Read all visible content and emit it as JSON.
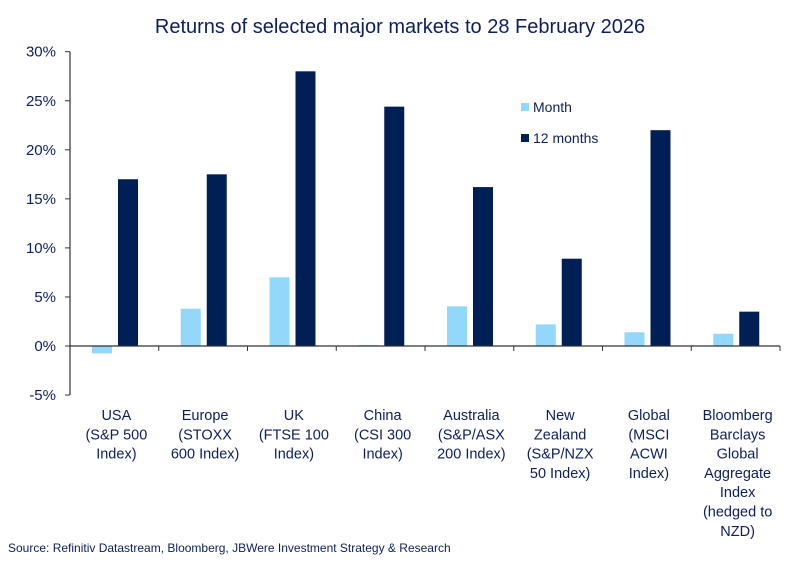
{
  "chart_data": {
    "type": "bar",
    "title": "Returns of selected major markets to 28 February 2026",
    "categories": [
      [
        "USA",
        "(S&P 500",
        "Index)"
      ],
      [
        "Europe",
        "(STOXX",
        "600 Index)"
      ],
      [
        "UK",
        "(FTSE 100",
        "Index)"
      ],
      [
        "China",
        "(CSI 300",
        "Index)"
      ],
      [
        "Australia",
        "(S&P/ASX",
        "200 Index)"
      ],
      [
        "New",
        "Zealand",
        "(S&P/NZX",
        "50 Index)"
      ],
      [
        "Global",
        "(MSCI",
        "ACWI",
        "Index)"
      ],
      [
        "Bloomberg",
        "Barclays",
        "Global",
        "Aggregate",
        "Index",
        "(hedged to",
        "NZD)"
      ]
    ],
    "series": [
      {
        "name": "Month",
        "color": "#93d7fb",
        "values": [
          -0.75,
          3.8,
          7.0,
          0.1,
          4.05,
          2.2,
          1.4,
          1.25
        ]
      },
      {
        "name": "12 months",
        "color": "#001f55",
        "values": [
          17.0,
          17.5,
          28.0,
          24.4,
          16.2,
          8.9,
          22.0,
          3.5
        ]
      }
    ],
    "ylim": [
      -5,
      30
    ],
    "yticks": [
      30,
      25,
      20,
      15,
      10,
      5,
      0,
      -5
    ],
    "ytick_labels": [
      "30%",
      "25%",
      "20%",
      "15%",
      "10%",
      "5%",
      "0%",
      "-5%"
    ],
    "grid": false,
    "legend_position": "top-right",
    "source": "Source: Refinitiv Datastream, Bloomberg, JBWere Investment Strategy & Research"
  }
}
